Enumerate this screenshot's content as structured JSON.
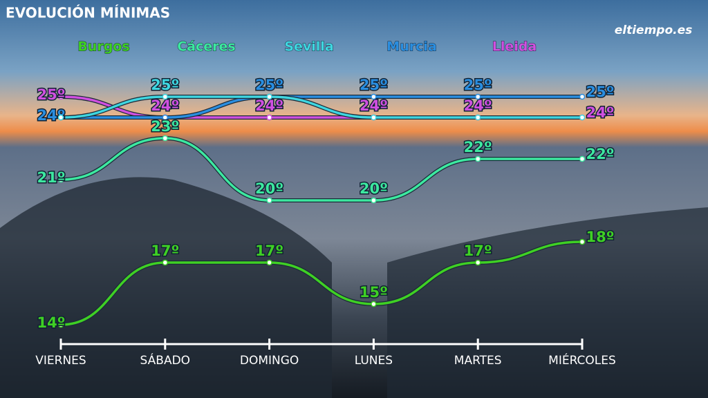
{
  "chart_data": {
    "type": "line",
    "title": "EVOLUCIÓN MÍNIMAS",
    "logo": "eltiempo.es",
    "categories": [
      "VIERNES",
      "SÁBADO",
      "DOMINGO",
      "LUNES",
      "MARTES",
      "MIÉRCOLES"
    ],
    "series": [
      {
        "name": "Burgos",
        "color": "#3fd024",
        "values": [
          14,
          17,
          17,
          15,
          17,
          18
        ],
        "value_labels": [
          "14º",
          "17º",
          "17º",
          "15º",
          "17º",
          "18º"
        ]
      },
      {
        "name": "Cáceres",
        "color": "#3de8a0",
        "values": [
          21,
          23,
          20,
          20,
          22,
          22
        ],
        "value_labels": [
          "21º",
          "23º",
          "20º",
          "20º",
          "22º",
          "22º"
        ]
      },
      {
        "name": "Sevilla",
        "color": "#3fd6e0",
        "values": [
          24,
          25,
          25,
          24,
          24,
          24
        ],
        "value_labels": [
          null,
          "25º",
          null,
          null,
          null,
          null
        ]
      },
      {
        "name": "Murcia",
        "color": "#2a8ee0",
        "values": [
          24,
          24,
          25,
          25,
          25,
          25
        ],
        "value_labels": [
          "24º",
          null,
          "25º",
          "25º",
          "25º",
          "25º"
        ]
      },
      {
        "name": "Lleida",
        "color": "#d050e0",
        "values": [
          25,
          24,
          24,
          24,
          24,
          24
        ],
        "value_labels": [
          "25º",
          "24º",
          "24º",
          "24º",
          "24º",
          "24º"
        ]
      }
    ]
  }
}
